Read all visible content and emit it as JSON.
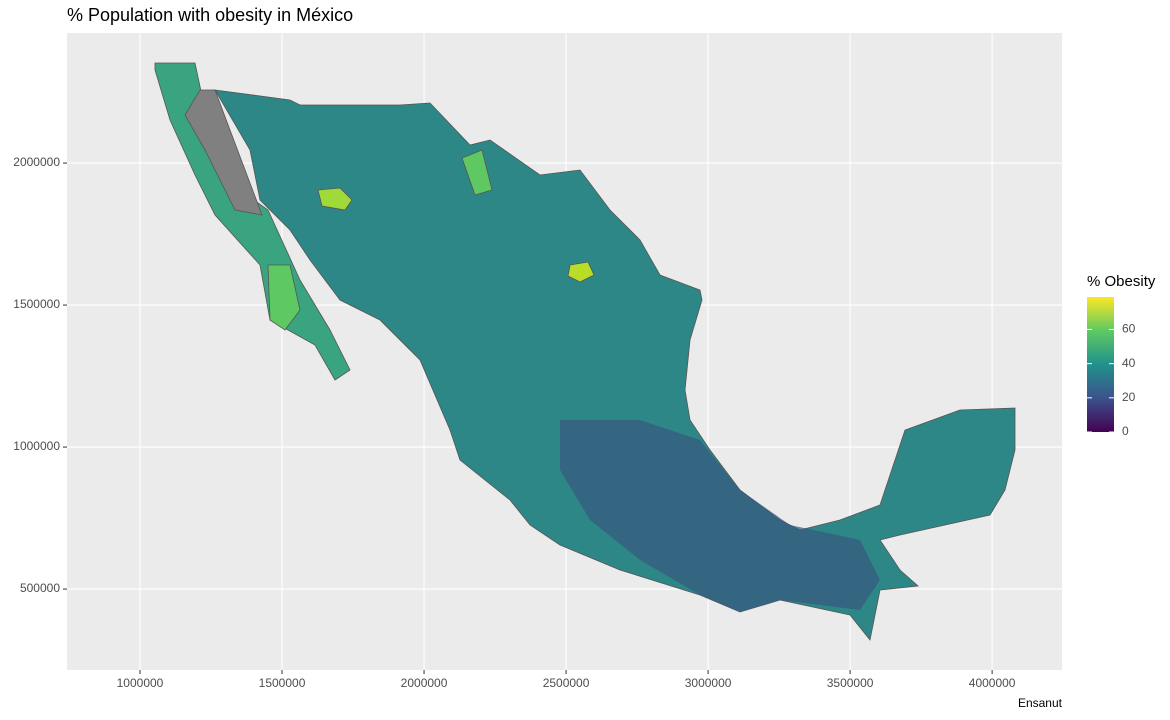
{
  "chart_data": {
    "type": "choropleth",
    "title": "% Population with obesity in México",
    "caption": "Ensanut",
    "xlim": [
      743000,
      4246000
    ],
    "xticks": [
      1000000,
      1500000,
      2000000,
      2500000,
      3000000,
      3500000,
      4000000
    ],
    "ylim": [
      215000,
      2458000
    ],
    "yticks": [
      500000,
      1000000,
      1500000,
      2000000
    ],
    "grid": true,
    "legend": {
      "title": "% Obesity",
      "limits": [
        0,
        79
      ],
      "ticks": [
        0,
        20,
        40,
        60
      ],
      "colors": [
        "#440154",
        "#3b528b",
        "#21918c",
        "#5ec962",
        "#fde725"
      ]
    }
  }
}
